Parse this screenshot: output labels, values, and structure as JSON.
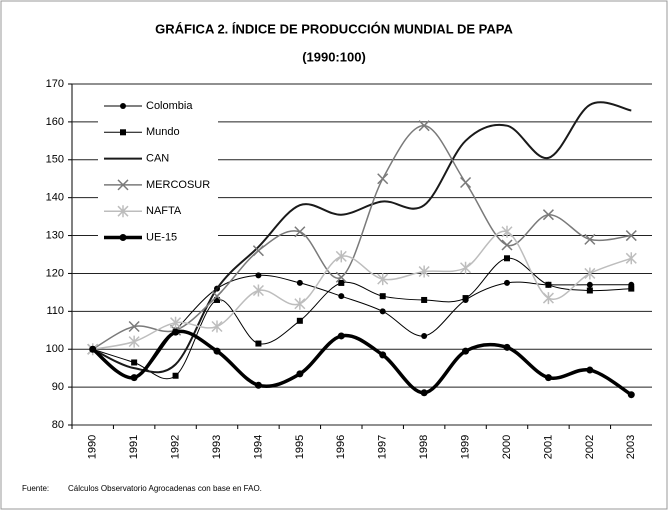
{
  "chart_data": {
    "type": "line",
    "title": "GRÁFICA 2. ÍNDICE DE PRODUCCIÓN MUNDIAL DE PAPA",
    "subtitle": "(1990:100)",
    "source_label": "Fuente:",
    "source": "Cálculos Observatorio Agrocadenas con base en FAO.",
    "categories": [
      "1990",
      "1991",
      "1992",
      "1993",
      "1994",
      "1995",
      "1996",
      "1997",
      "1998",
      "1999",
      "2000",
      "2001",
      "2002",
      "2003"
    ],
    "series": [
      {
        "name": "Colombia",
        "color": "#000000",
        "marker": "circle",
        "width": 1,
        "values": [
          100,
          92.5,
          105,
          116,
          119.5,
          117.5,
          114,
          110,
          103.5,
          113,
          117.5,
          117,
          117,
          117
        ]
      },
      {
        "name": "Mundo",
        "color": "#000000",
        "marker": "square",
        "width": 1,
        "values": [
          100,
          96.5,
          93,
          113,
          101.5,
          107.5,
          117.5,
          114,
          113,
          113.5,
          124,
          117,
          115.5,
          116
        ]
      },
      {
        "name": "CAN",
        "color": "#1a1a1a",
        "marker": "none",
        "width": 2,
        "values": [
          100,
          95,
          96,
          116,
          127,
          138,
          135.5,
          139,
          138,
          155,
          159,
          150.5,
          164.5,
          163
        ]
      },
      {
        "name": "MERCOSUR",
        "color": "#7a7a7a",
        "marker": "x",
        "width": 1.5,
        "values": [
          100,
          106,
          105,
          114,
          126,
          131,
          119,
          145,
          159,
          144,
          127.5,
          135.5,
          129,
          130
        ]
      },
      {
        "name": "NAFTA",
        "color": "#bdbdbd",
        "marker": "star",
        "width": 1.5,
        "values": [
          100,
          102,
          107,
          106,
          115.5,
          112,
          124.5,
          118.5,
          120.5,
          121.5,
          131,
          113.5,
          120,
          124
        ]
      },
      {
        "name": "UE-15",
        "color": "#000000",
        "marker": "circle",
        "width": 3.5,
        "values": [
          100,
          92.5,
          104.5,
          99.5,
          90.5,
          93.5,
          103.5,
          98.5,
          88.5,
          99.5,
          100.5,
          92.5,
          94.5,
          88
        ]
      }
    ],
    "ylim": [
      80,
      170
    ],
    "yticks": [
      80,
      90,
      100,
      110,
      120,
      130,
      140,
      150,
      160,
      170
    ],
    "grid": true,
    "legend": "upper-left"
  }
}
